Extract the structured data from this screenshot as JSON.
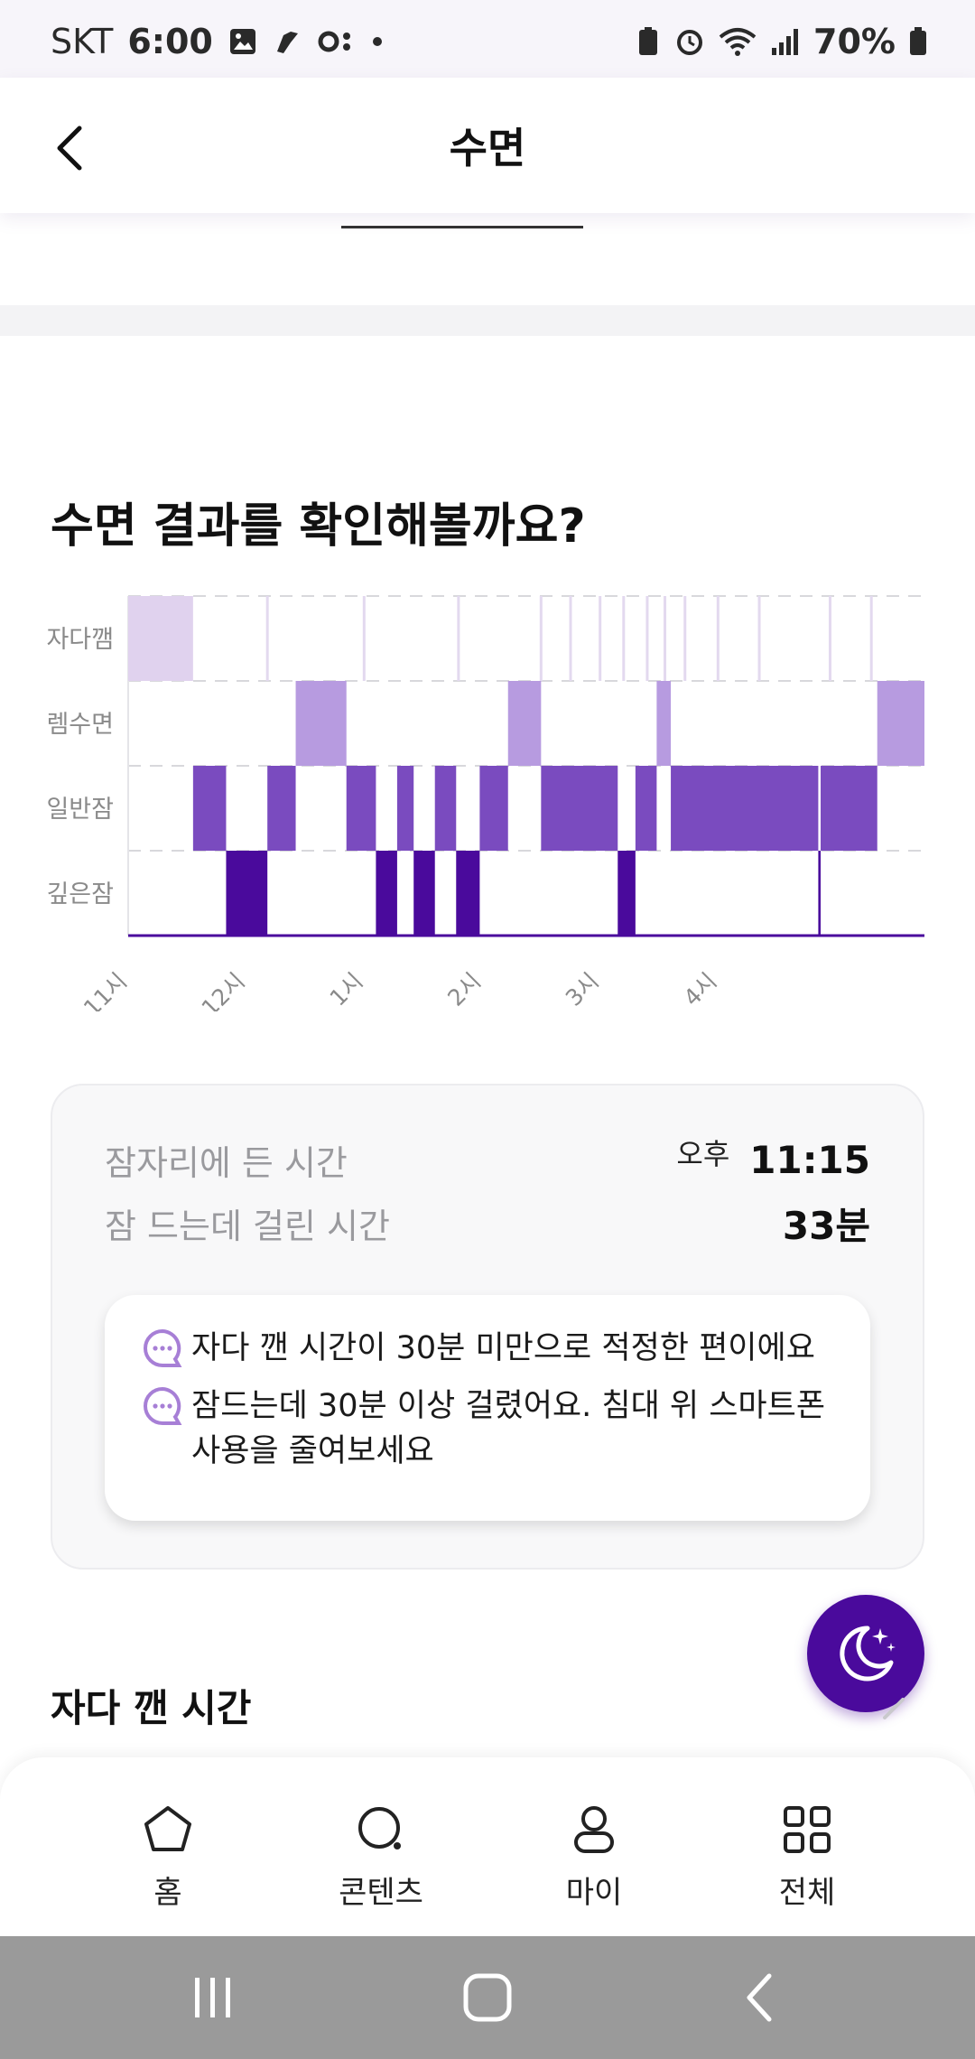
{
  "status_bar": {
    "carrier": "SKT",
    "time": "6:00",
    "battery": "70%"
  },
  "header": {
    "title": "수면"
  },
  "section": {
    "title": "수면 결과를 확인해볼까요?"
  },
  "chart_data": {
    "type": "step-hypnogram",
    "stages": [
      "자다깸",
      "렘수면",
      "일반잠",
      "깊은잠"
    ],
    "x_ticks": [
      "11시",
      "12시",
      "1시",
      "2시",
      "3시",
      "4시"
    ],
    "x_range_hours": [
      23.0,
      29.75
    ],
    "segments": [
      {
        "stage": "자다깸",
        "start": 23.0,
        "end": 23.55
      },
      {
        "stage": "일반잠",
        "start": 23.55,
        "end": 23.83
      },
      {
        "stage": "깊은잠",
        "start": 23.83,
        "end": 24.18
      },
      {
        "stage": "일반잠",
        "start": 24.18,
        "end": 24.42
      },
      {
        "stage": "렘수면",
        "start": 24.42,
        "end": 24.85
      },
      {
        "stage": "일반잠",
        "start": 24.85,
        "end": 25.1
      },
      {
        "stage": "깊은잠",
        "start": 25.1,
        "end": 25.28
      },
      {
        "stage": "일반잠",
        "start": 25.28,
        "end": 25.42
      },
      {
        "stage": "깊은잠",
        "start": 25.42,
        "end": 25.6
      },
      {
        "stage": "일반잠",
        "start": 25.6,
        "end": 25.78
      },
      {
        "stage": "깊은잠",
        "start": 25.78,
        "end": 25.98
      },
      {
        "stage": "일반잠",
        "start": 25.98,
        "end": 26.22
      },
      {
        "stage": "렘수면",
        "start": 26.22,
        "end": 26.5
      },
      {
        "stage": "일반잠",
        "start": 26.5,
        "end": 27.15
      },
      {
        "stage": "깊은잠",
        "start": 27.15,
        "end": 27.3
      },
      {
        "stage": "일반잠",
        "start": 27.3,
        "end": 27.48
      },
      {
        "stage": "렘수면",
        "start": 27.48,
        "end": 27.6
      },
      {
        "stage": "일반잠",
        "start": 27.6,
        "end": 28.85
      },
      {
        "stage": "깊은잠",
        "start": 28.85,
        "end": 28.87
      },
      {
        "stage": "일반잠",
        "start": 28.87,
        "end": 29.35
      },
      {
        "stage": "렘수면",
        "start": 29.35,
        "end": 29.75
      }
    ],
    "awake_ticks": [
      24.18,
      25.0,
      25.8,
      26.5,
      26.75,
      27.0,
      27.2,
      27.4,
      27.55,
      27.72,
      28.0,
      28.35,
      28.95,
      29.3
    ]
  },
  "summary": {
    "bedtime_label": "잠자리에 든 시간",
    "bedtime_ampm": "오후",
    "bedtime_value": "11:15",
    "latency_label": "잠 드는데 걸린 시간",
    "latency_value": "33분",
    "tips": [
      {
        "line1": "자다 깬 시간이 30분 미만으로 적정한 편이에요",
        "line2": ""
      },
      {
        "line1": "잠드는데 30분 이상 걸렸어요. 침대 위 스마트폰",
        "line2": "사용을 줄여보세요"
      }
    ]
  },
  "awake_section": {
    "title": "자다 깬 시간"
  },
  "bottom_nav": [
    {
      "label": "홈",
      "icon": "home-icon"
    },
    {
      "label": "콘텐츠",
      "icon": "search-icon"
    },
    {
      "label": "마이",
      "icon": "person-icon"
    },
    {
      "label": "전체",
      "icon": "grid-icon"
    }
  ],
  "colors": {
    "awake": "#e0d2ee",
    "rem": "#b79be0",
    "light": "#7a4bbf",
    "deep": "#4a0a9c",
    "accent": "#4a0a9c"
  }
}
